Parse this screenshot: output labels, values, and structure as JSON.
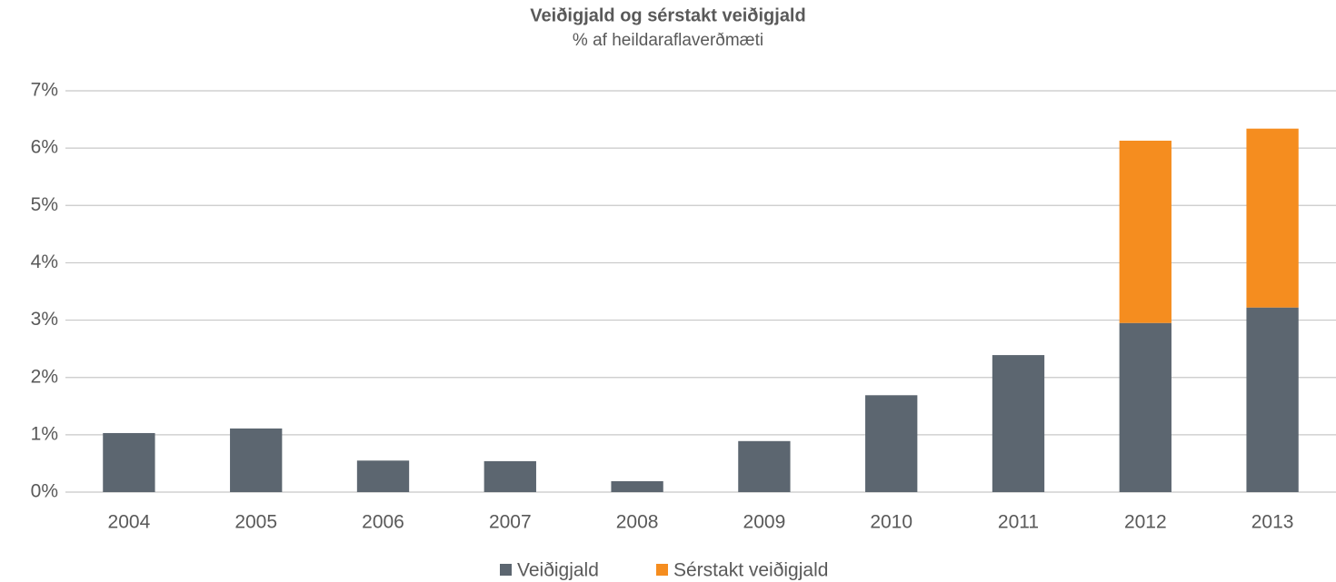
{
  "chart_data": {
    "type": "stacked_bar",
    "title": "Veiðigjald  og sérstakt veiðigjald",
    "subtitle": "% af heildaraflaverðmæti",
    "categories": [
      "2004",
      "2005",
      "2006",
      "2007",
      "2008",
      "2009",
      "2010",
      "2011",
      "2012",
      "2013"
    ],
    "series": [
      {
        "name": "Veiðigjald",
        "color": "#5c6670",
        "values": [
          1.03,
          1.11,
          0.55,
          0.54,
          0.19,
          0.89,
          1.69,
          2.39,
          2.95,
          3.22
        ]
      },
      {
        "name": "Sérstakt veiðigjald",
        "color": "#f58d1f",
        "values": [
          null,
          null,
          null,
          null,
          null,
          null,
          null,
          null,
          3.18,
          3.12
        ]
      }
    ],
    "ylim": [
      0,
      7
    ],
    "yticks": [
      {
        "value": 0,
        "label": "0%"
      },
      {
        "value": 1,
        "label": "1%"
      },
      {
        "value": 2,
        "label": "2%"
      },
      {
        "value": 3,
        "label": "3%"
      },
      {
        "value": 4,
        "label": "4%"
      },
      {
        "value": 5,
        "label": "5%"
      },
      {
        "value": 6,
        "label": "6%"
      },
      {
        "value": 7,
        "label": "7%"
      }
    ],
    "grid": true,
    "legend": "bottom"
  }
}
